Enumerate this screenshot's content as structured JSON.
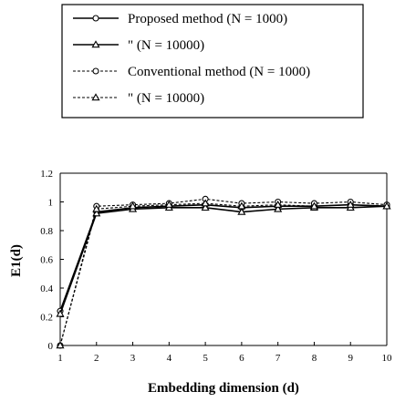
{
  "chart_data": {
    "type": "line",
    "title": "",
    "xlabel": "Embedding dimension (d)",
    "ylabel": "E1(d)",
    "xlim": [
      1,
      10
    ],
    "ylim": [
      0,
      1.2
    ],
    "x": [
      1,
      2,
      3,
      4,
      5,
      6,
      7,
      8,
      9,
      10
    ],
    "x_ticks": [
      "1",
      "2",
      "3",
      "4",
      "5",
      "6",
      "7",
      "8",
      "9",
      "10"
    ],
    "y_ticks": [
      "0",
      "0.2",
      "0.4",
      "0.6",
      "0.8",
      "1",
      "1.2"
    ],
    "grid": false,
    "legend_position": "top",
    "series": [
      {
        "name": "Proposed method (N = 1000)",
        "line": "solid",
        "marker": "circle",
        "values": [
          0.24,
          0.93,
          0.96,
          0.97,
          0.98,
          0.96,
          0.97,
          0.97,
          0.98,
          0.97
        ]
      },
      {
        "name": "Proposed method (N = 10000)",
        "line": "solid",
        "marker": "triangle",
        "values": [
          0.22,
          0.92,
          0.95,
          0.96,
          0.96,
          0.93,
          0.95,
          0.96,
          0.96,
          0.97
        ]
      },
      {
        "name": "Conventional method (N = 1000)",
        "line": "dashed",
        "marker": "circle",
        "values": [
          0.0,
          0.97,
          0.98,
          0.99,
          1.02,
          0.99,
          1.0,
          0.99,
          1.0,
          0.98
        ]
      },
      {
        "name": "Conventional method (N = 10000)",
        "line": "dashed",
        "marker": "triangle",
        "values": [
          0.0,
          0.95,
          0.97,
          0.98,
          0.99,
          0.97,
          0.98,
          0.97,
          0.98,
          0.97
        ]
      }
    ]
  },
  "legend": {
    "entries": [
      {
        "label": "Proposed method (N = 1000)",
        "line": "solid",
        "marker": "circle"
      },
      {
        "label": "\"          (N = 10000)",
        "line": "solid",
        "marker": "triangle"
      },
      {
        "label": "Conventional method (N = 1000)",
        "line": "dashed",
        "marker": "circle"
      },
      {
        "label": "\"          (N = 10000)",
        "line": "dashed",
        "marker": "triangle"
      }
    ]
  }
}
